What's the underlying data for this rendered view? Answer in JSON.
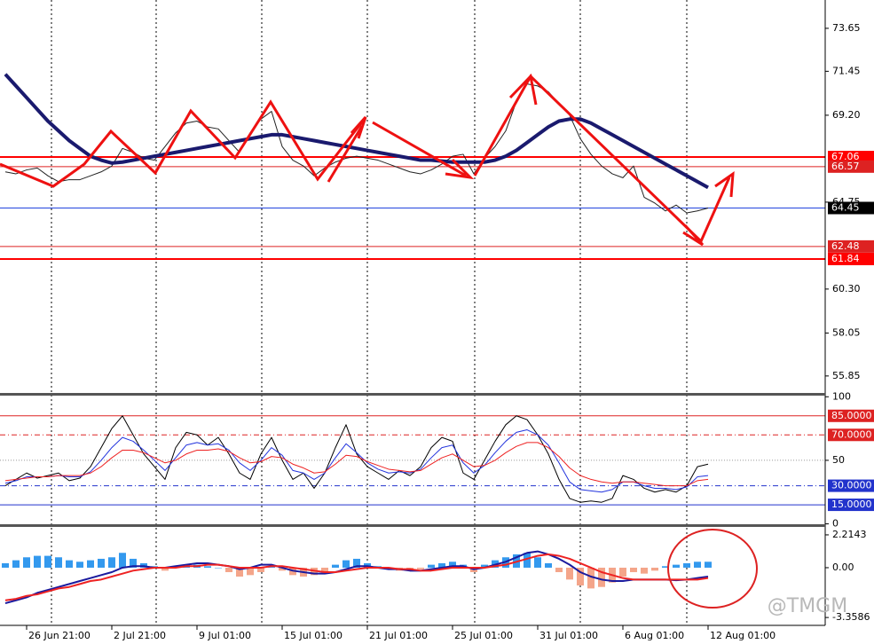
{
  "watermark": "@TMGM",
  "chart_data": [
    {
      "type": "line",
      "ylim": [
        54.98,
        75.1
      ],
      "yticks": [
        73.65,
        71.45,
        {
          "value": 69.2,
          "label": "69.20"
        },
        64.75,
        {
          "value": 60.3,
          "label": "60.30"
        },
        58.05,
        55.85
      ],
      "hlines": [
        {
          "value": 67.06,
          "color": "#ff0000"
        },
        {
          "value": 66.57,
          "color": "#dd2222"
        },
        {
          "value": 64.45,
          "color": "#2244dd",
          "label_bg": "#000000"
        },
        {
          "value": 62.48,
          "color": "#dd2222"
        },
        {
          "value": 61.84,
          "color": "#ff0000"
        }
      ],
      "series": [
        {
          "name": "Price",
          "color": "#222222",
          "width": 1,
          "values": [
            66.3,
            66.2,
            66.4,
            66.5,
            66.1,
            65.8,
            65.9,
            65.9,
            66.1,
            66.3,
            66.6,
            67.5,
            67.3,
            67.0,
            66.9,
            67.6,
            68.3,
            68.8,
            68.9,
            68.6,
            68.5,
            67.9,
            67.3,
            68.3,
            69.0,
            69.4,
            67.6,
            66.9,
            66.6,
            66.1,
            66.5,
            66.8,
            67.0,
            67.1,
            67.0,
            66.9,
            66.7,
            66.5,
            66.3,
            66.2,
            66.4,
            66.7,
            67.1,
            67.2,
            66.2,
            67.0,
            67.6,
            68.4,
            69.9,
            70.8,
            70.7,
            70.4,
            69.8,
            69.2,
            68.0,
            67.2,
            66.6,
            66.2,
            66.0,
            66.6,
            65.0,
            64.7,
            64.3,
            64.6,
            64.2,
            64.3,
            64.45
          ]
        },
        {
          "name": "MA",
          "color": "#1a1a6e",
          "width": 4,
          "values": [
            71.3,
            70.7,
            70.1,
            69.5,
            68.9,
            68.4,
            67.9,
            67.5,
            67.1,
            66.9,
            66.75,
            66.8,
            66.9,
            67.0,
            67.1,
            67.2,
            67.3,
            67.4,
            67.5,
            67.6,
            67.7,
            67.8,
            67.9,
            68.0,
            68.1,
            68.2,
            68.2,
            68.1,
            68.0,
            67.9,
            67.8,
            67.7,
            67.6,
            67.5,
            67.4,
            67.3,
            67.2,
            67.1,
            67.0,
            66.9,
            66.9,
            66.85,
            66.8,
            66.8,
            66.8,
            66.8,
            66.9,
            67.1,
            67.4,
            67.8,
            68.2,
            68.6,
            68.9,
            69.0,
            69.0,
            68.8,
            68.5,
            68.2,
            67.9,
            67.6,
            67.3,
            67.0,
            66.7,
            66.4,
            66.1,
            65.8,
            65.5
          ]
        }
      ]
    },
    {
      "type": "line",
      "ylim": [
        -0.3,
        100.9
      ],
      "yticks": [
        100,
        50,
        0
      ],
      "hlines": [
        {
          "value": 85,
          "label": "85.0000",
          "color": "#dd2222",
          "dash": "none",
          "label_bg": "#dd2222"
        },
        {
          "value": 70,
          "label": "70.0000",
          "color": "#dd2222",
          "dash": "6 3 1 3",
          "label_bg": "#dd2222"
        },
        {
          "value": 50,
          "color": "#999999",
          "dash": "1 2"
        },
        {
          "value": 30,
          "label": "30.0000",
          "color": "#2233cc",
          "dash": "6 3 1 3",
          "label_bg": "#2233cc"
        },
        {
          "value": 15,
          "label": "15.0000",
          "color": "#2233cc",
          "dash": "none",
          "label_bg": "#2233cc"
        }
      ],
      "series": [
        {
          "name": "Fast",
          "color": "#000000",
          "width": 1,
          "values": [
            30,
            35,
            40,
            36,
            38,
            40,
            34,
            36,
            45,
            60,
            75,
            85,
            70,
            55,
            45,
            35,
            60,
            72,
            70,
            62,
            68,
            55,
            40,
            35,
            55,
            68,
            50,
            35,
            40,
            28,
            40,
            60,
            78,
            55,
            45,
            40,
            35,
            42,
            38,
            45,
            60,
            68,
            65,
            40,
            35,
            50,
            65,
            78,
            85,
            82,
            70,
            55,
            35,
            20,
            17,
            18,
            17,
            20,
            38,
            35,
            28,
            25,
            27,
            25,
            30,
            45,
            47
          ]
        },
        {
          "name": "Mid",
          "color": "#2233dd",
          "width": 1,
          "values": [
            32,
            34,
            37,
            37,
            37,
            38,
            37,
            37,
            41,
            50,
            60,
            68,
            65,
            58,
            50,
            42,
            52,
            62,
            64,
            62,
            63,
            58,
            48,
            42,
            50,
            60,
            54,
            42,
            40,
            35,
            40,
            52,
            63,
            56,
            48,
            43,
            40,
            41,
            40,
            43,
            52,
            60,
            62,
            48,
            40,
            46,
            56,
            65,
            72,
            74,
            70,
            62,
            48,
            33,
            27,
            26,
            25,
            27,
            33,
            33,
            30,
            28,
            28,
            27,
            29,
            37,
            38
          ]
        },
        {
          "name": "Slow",
          "color": "#ee2222",
          "width": 1,
          "values": [
            34,
            35,
            36,
            37,
            37,
            38,
            38,
            38,
            40,
            45,
            52,
            58,
            58,
            56,
            52,
            48,
            50,
            55,
            58,
            58,
            59,
            57,
            52,
            48,
            49,
            53,
            52,
            47,
            44,
            40,
            41,
            47,
            54,
            53,
            49,
            46,
            43,
            42,
            41,
            42,
            47,
            52,
            55,
            50,
            45,
            46,
            50,
            56,
            61,
            64,
            64,
            60,
            53,
            44,
            38,
            35,
            33,
            32,
            33,
            33,
            32,
            31,
            30,
            30,
            30,
            34,
            35
          ]
        }
      ]
    },
    {
      "type": "bar",
      "ylim": [
        -3.89,
        2.75
      ],
      "yticks": [
        2.2143,
        {
          "value": 0,
          "label": "0.00"
        },
        -3.3586
      ],
      "categories": [
        null,
        null,
        "26 Jun 21:00",
        null,
        null,
        null,
        null,
        null,
        null,
        null,
        "2 Jul 21:00",
        null,
        null,
        null,
        null,
        null,
        null,
        null,
        "9 Jul 01:00",
        null,
        null,
        null,
        null,
        null,
        null,
        null,
        "15 Jul 01:00",
        null,
        null,
        null,
        null,
        null,
        null,
        null,
        "21 Jul 01:00",
        null,
        null,
        null,
        null,
        null,
        null,
        null,
        "25 Jul 01:00",
        null,
        null,
        null,
        null,
        null,
        null,
        null,
        "31 Jul 01:00",
        null,
        null,
        null,
        null,
        null,
        null,
        null,
        "6 Aug 01:00",
        null,
        null,
        null,
        null,
        null,
        null,
        null,
        "12 Aug 01:00"
      ],
      "values": [
        0.3,
        0.5,
        0.7,
        0.8,
        0.8,
        0.7,
        0.5,
        0.4,
        0.5,
        0.6,
        0.7,
        1.0,
        0.6,
        0.3,
        0.1,
        -0.2,
        0.1,
        0.2,
        0.2,
        0.1,
        0.0,
        -0.3,
        -0.6,
        -0.5,
        -0.3,
        0.1,
        -0.2,
        -0.5,
        -0.6,
        -0.5,
        -0.3,
        0.2,
        0.5,
        0.6,
        0.3,
        0.1,
        -0.1,
        -0.2,
        -0.2,
        -0.1,
        0.2,
        0.3,
        0.4,
        0.2,
        -0.3,
        0.2,
        0.5,
        0.7,
        0.9,
        1.0,
        0.7,
        0.3,
        -0.3,
        -0.8,
        -1.2,
        -1.4,
        -1.3,
        -1.0,
        -0.6,
        -0.3,
        -0.4,
        -0.2,
        0.1,
        0.2,
        0.3,
        0.4,
        0.4
      ],
      "pos_color": "#3399ee",
      "neg_color": "#f4a58a",
      "series": [
        {
          "name": "MACD",
          "color": "#1a1a9e",
          "width": 2,
          "values": [
            -2.4,
            -2.2,
            -2.0,
            -1.7,
            -1.5,
            -1.3,
            -1.1,
            -0.9,
            -0.7,
            -0.5,
            -0.3,
            0.0,
            0.1,
            0.1,
            0.0,
            0.0,
            0.1,
            0.2,
            0.3,
            0.3,
            0.2,
            0.1,
            -0.1,
            0.0,
            0.2,
            0.2,
            0.0,
            -0.2,
            -0.3,
            -0.4,
            -0.4,
            -0.3,
            -0.1,
            0.1,
            0.1,
            0.0,
            -0.1,
            -0.1,
            -0.2,
            -0.2,
            -0.1,
            0.0,
            0.1,
            0.1,
            -0.1,
            0.0,
            0.2,
            0.4,
            0.7,
            1.0,
            1.1,
            0.9,
            0.6,
            0.2,
            -0.3,
            -0.6,
            -0.8,
            -0.9,
            -0.9,
            -0.8,
            -0.8,
            -0.8,
            -0.8,
            -0.85,
            -0.8,
            -0.7,
            -0.6
          ]
        },
        {
          "name": "Signal",
          "color": "#ee2222",
          "width": 2,
          "values": [
            -2.2,
            -2.1,
            -1.9,
            -1.8,
            -1.6,
            -1.4,
            -1.3,
            -1.1,
            -0.9,
            -0.8,
            -0.6,
            -0.4,
            -0.2,
            -0.1,
            0.0,
            0.0,
            0.0,
            0.1,
            0.1,
            0.2,
            0.2,
            0.1,
            0.0,
            0.0,
            0.0,
            0.1,
            0.1,
            0.0,
            -0.1,
            -0.2,
            -0.3,
            -0.3,
            -0.2,
            -0.1,
            0.0,
            0.0,
            0.0,
            -0.1,
            -0.1,
            -0.2,
            -0.2,
            -0.1,
            0.0,
            0.0,
            0.0,
            0.0,
            0.1,
            0.2,
            0.4,
            0.6,
            0.8,
            0.9,
            0.8,
            0.6,
            0.3,
            0.0,
            -0.3,
            -0.5,
            -0.7,
            -0.8,
            -0.8,
            -0.8,
            -0.8,
            -0.8,
            -0.8,
            -0.8,
            -0.7
          ]
        }
      ]
    }
  ]
}
